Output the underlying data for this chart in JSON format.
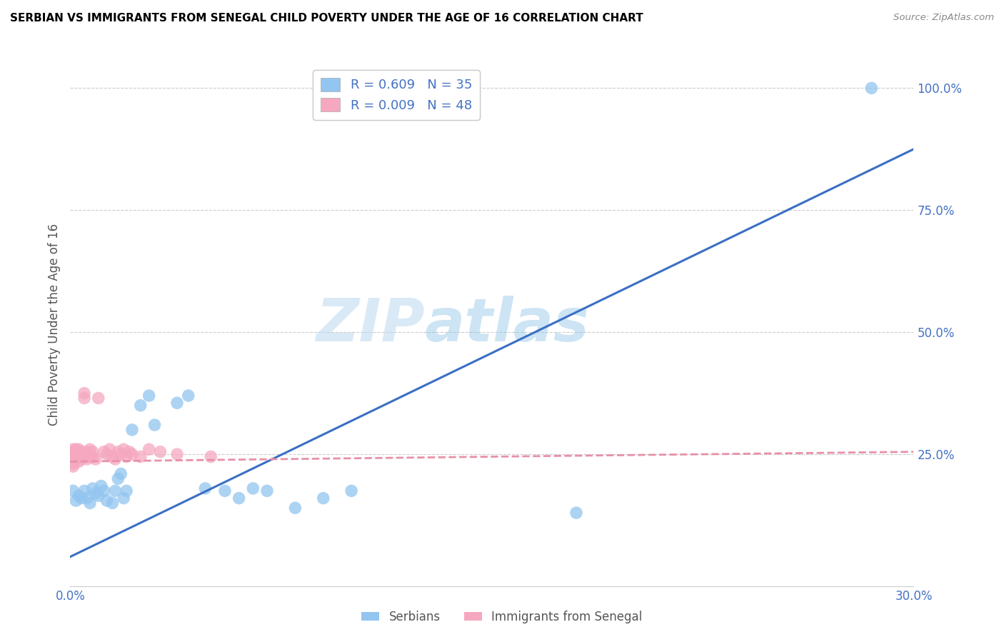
{
  "title": "SERBIAN VS IMMIGRANTS FROM SENEGAL CHILD POVERTY UNDER THE AGE OF 16 CORRELATION CHART",
  "source": "Source: ZipAtlas.com",
  "ylabel": "Child Poverty Under the Age of 16",
  "xlim": [
    0.0,
    0.3
  ],
  "ylim": [
    -0.02,
    1.05
  ],
  "xticks": [
    0.0,
    0.05,
    0.1,
    0.15,
    0.2,
    0.25,
    0.3
  ],
  "xtick_labels": [
    "0.0%",
    "",
    "",
    "",
    "",
    "",
    "30.0%"
  ],
  "yticks": [
    0.25,
    0.5,
    0.75,
    1.0
  ],
  "ytick_labels": [
    "25.0%",
    "50.0%",
    "75.0%",
    "100.0%"
  ],
  "watermark_zip": "ZIP",
  "watermark_atlas": "atlas",
  "serbian_color": "#92C5F0",
  "senegal_color": "#F5A8BF",
  "serbian_line_color": "#3A6FC4",
  "senegal_line_color": "#E890A8",
  "legend_serbian_R": "R = 0.609",
  "legend_serbian_N": "N = 35",
  "legend_senegal_R": "R = 0.009",
  "legend_senegal_N": "N = 48",
  "grid_color": "#CCCCCC",
  "serbian_line_x0": 0.0,
  "serbian_line_y0": 0.04,
  "serbian_line_x1": 0.3,
  "serbian_line_y1": 0.875,
  "senegal_line_x0": 0.0,
  "senegal_line_y0": 0.235,
  "senegal_line_x1": 0.3,
  "senegal_line_y1": 0.255,
  "serbian_x": [
    0.001,
    0.002,
    0.003,
    0.004,
    0.005,
    0.006,
    0.007,
    0.008,
    0.009,
    0.01,
    0.011,
    0.012,
    0.013,
    0.015,
    0.016,
    0.017,
    0.018,
    0.019,
    0.02,
    0.022,
    0.025,
    0.028,
    0.03,
    0.038,
    0.042,
    0.048,
    0.055,
    0.06,
    0.065,
    0.07,
    0.08,
    0.09,
    0.1,
    0.18,
    0.285
  ],
  "serbian_y": [
    0.175,
    0.155,
    0.165,
    0.16,
    0.175,
    0.16,
    0.15,
    0.18,
    0.17,
    0.165,
    0.185,
    0.175,
    0.155,
    0.15,
    0.175,
    0.2,
    0.21,
    0.16,
    0.175,
    0.3,
    0.35,
    0.37,
    0.31,
    0.355,
    0.37,
    0.18,
    0.175,
    0.16,
    0.18,
    0.175,
    0.14,
    0.16,
    0.175,
    0.13,
    1.0
  ],
  "senegal_x": [
    0.001,
    0.001,
    0.001,
    0.001,
    0.001,
    0.001,
    0.001,
    0.001,
    0.002,
    0.002,
    0.002,
    0.002,
    0.002,
    0.003,
    0.003,
    0.003,
    0.003,
    0.004,
    0.004,
    0.004,
    0.005,
    0.005,
    0.006,
    0.006,
    0.006,
    0.007,
    0.007,
    0.007,
    0.008,
    0.008,
    0.009,
    0.01,
    0.012,
    0.013,
    0.014,
    0.015,
    0.016,
    0.017,
    0.018,
    0.019,
    0.02,
    0.021,
    0.022,
    0.025,
    0.028,
    0.032,
    0.038,
    0.05
  ],
  "senegal_y": [
    0.255,
    0.26,
    0.25,
    0.24,
    0.23,
    0.245,
    0.235,
    0.225,
    0.25,
    0.26,
    0.24,
    0.255,
    0.245,
    0.25,
    0.245,
    0.26,
    0.235,
    0.255,
    0.245,
    0.24,
    0.365,
    0.375,
    0.245,
    0.255,
    0.24,
    0.25,
    0.245,
    0.26,
    0.255,
    0.245,
    0.24,
    0.365,
    0.255,
    0.25,
    0.26,
    0.245,
    0.24,
    0.255,
    0.25,
    0.26,
    0.245,
    0.255,
    0.25,
    0.245,
    0.26,
    0.255,
    0.25,
    0.245
  ]
}
